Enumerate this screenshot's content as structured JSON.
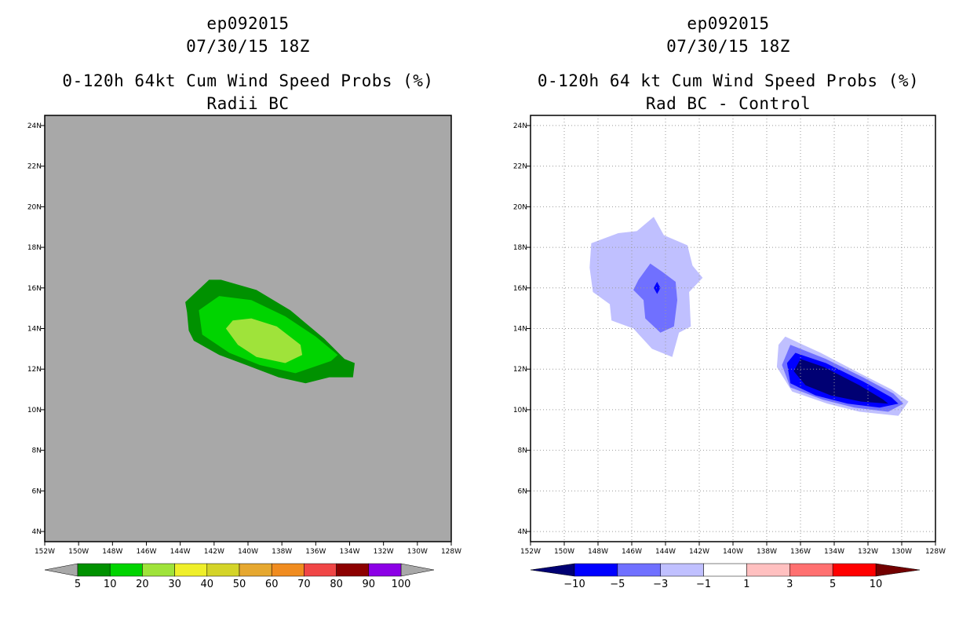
{
  "colors": {
    "land_gray": "#a8a8a8",
    "prob_scale": [
      "#009100",
      "#00d400",
      "#9fe33a",
      "#efef2a",
      "#d4d428",
      "#e6a830",
      "#f08c20",
      "#f04646",
      "#8c0000",
      "#8c00e6"
    ],
    "diff_scale": [
      "#000073",
      "#0000ff",
      "#7070ff",
      "#c0c0ff",
      "#ffffff",
      "#ffc0c0",
      "#ff7070",
      "#ff0000",
      "#730000"
    ]
  },
  "chart_data": [
    {
      "type": "contour-map",
      "storm_id": "ep092015",
      "datetime": "07/30/15 18Z",
      "title": "0-120h 64kt Cum Wind Speed Probs (%)",
      "subtitle": "Radii BC",
      "xlim": [
        -152,
        -128
      ],
      "ylim": [
        3.5,
        24.5
      ],
      "x_ticks": [
        "152W",
        "150W",
        "148W",
        "146W",
        "144W",
        "142W",
        "140W",
        "138W",
        "136W",
        "134W",
        "132W",
        "130W",
        "128W"
      ],
      "y_ticks": [
        "4N",
        "6N",
        "8N",
        "10N",
        "12N",
        "14N",
        "16N",
        "18N",
        "20N",
        "22N",
        "24N"
      ],
      "colorbar_labels": [
        "5",
        "10",
        "20",
        "30",
        "40",
        "50",
        "60",
        "70",
        "80",
        "90",
        "100"
      ],
      "contours": [
        {
          "level": 5,
          "color_index": 0,
          "points": [
            [
              -143.7,
              15.3
            ],
            [
              -142.3,
              16.4
            ],
            [
              -141.6,
              16.4
            ],
            [
              -139.5,
              15.9
            ],
            [
              -137.5,
              14.9
            ],
            [
              -135.5,
              13.5
            ],
            [
              -134.3,
              12.5
            ],
            [
              -133.7,
              12.3
            ],
            [
              -133.8,
              11.6
            ],
            [
              -135.2,
              11.6
            ],
            [
              -136.6,
              11.3
            ],
            [
              -138.2,
              11.6
            ],
            [
              -140.1,
              12.2
            ],
            [
              -141.7,
              12.7
            ],
            [
              -143.2,
              13.4
            ],
            [
              -143.5,
              13.9
            ],
            [
              -143.6,
              14.8
            ]
          ]
        },
        {
          "level": 10,
          "color_index": 1,
          "points": [
            [
              -142.9,
              14.9
            ],
            [
              -141.7,
              15.6
            ],
            [
              -139.8,
              15.4
            ],
            [
              -137.8,
              14.6
            ],
            [
              -136,
              13.6
            ],
            [
              -134.7,
              12.7
            ],
            [
              -135.1,
              12.4
            ],
            [
              -137.2,
              11.8
            ],
            [
              -139.3,
              12.2
            ],
            [
              -141.1,
              12.8
            ],
            [
              -142.7,
              13.7
            ]
          ]
        },
        {
          "level": 20,
          "color_index": 2,
          "points": [
            [
              -140.9,
              14.4
            ],
            [
              -139.8,
              14.5
            ],
            [
              -138.3,
              14.1
            ],
            [
              -136.9,
              13.2
            ],
            [
              -136.8,
              12.7
            ],
            [
              -137.8,
              12.3
            ],
            [
              -139.5,
              12.6
            ],
            [
              -140.6,
              13.2
            ],
            [
              -141.3,
              14
            ]
          ]
        }
      ]
    },
    {
      "type": "contour-map",
      "storm_id": "ep092015",
      "datetime": "07/30/15 18Z",
      "title": "0-120h 64 kt Cum Wind Speed Probs (%)",
      "subtitle": "Rad BC - Control",
      "xlim": [
        -152,
        -128
      ],
      "ylim": [
        3.5,
        24.5
      ],
      "x_ticks": [
        "152W",
        "150W",
        "148W",
        "146W",
        "144W",
        "142W",
        "140W",
        "138W",
        "136W",
        "134W",
        "132W",
        "130W",
        "128W"
      ],
      "y_ticks": [
        "4N",
        "6N",
        "8N",
        "10N",
        "12N",
        "14N",
        "16N",
        "18N",
        "20N",
        "22N",
        "24N"
      ],
      "colorbar_labels": [
        "-10",
        "-5",
        "-3",
        "-1",
        "1",
        "3",
        "5",
        "10"
      ],
      "contours": [
        {
          "level": -1,
          "color_index": 3,
          "points": [
            [
              -148.6,
              18
            ]
          ],
          "_": "placeholder"
        },
        {
          "level": -1,
          "color_index": 3,
          "points": [
            [
              -148.4,
              18.2
            ],
            [
              -146.8,
              18.7
            ],
            [
              -145.7,
              18.8
            ],
            [
              -144.7,
              19.5
            ],
            [
              -144.1,
              18.6
            ],
            [
              -142.7,
              18.1
            ],
            [
              -142.4,
              17.1
            ],
            [
              -141.8,
              16.5
            ],
            [
              -142.6,
              15.8
            ],
            [
              -142.5,
              14.1
            ],
            [
              -143.2,
              13.8
            ],
            [
              -143.6,
              12.6
            ],
            [
              -144.8,
              13
            ],
            [
              -145.9,
              14
            ],
            [
              -147.2,
              14.4
            ],
            [
              -147.3,
              15.2
            ],
            [
              -148.3,
              15.8
            ],
            [
              -148.5,
              17
            ]
          ]
        },
        {
          "level": -3,
          "color_index": 2,
          "points": [
            [
              -145.6,
              16.4
            ],
            [
              -144.9,
              17.2
            ],
            [
              -144.2,
              16.8
            ],
            [
              -143.4,
              16.3
            ],
            [
              -143.3,
              15.4
            ],
            [
              -143.5,
              14.1
            ],
            [
              -144.3,
              13.8
            ],
            [
              -145.2,
              14.5
            ],
            [
              -145.3,
              15.4
            ],
            [
              -145.9,
              15.9
            ]
          ]
        },
        {
          "level": -5,
          "color_index": 1,
          "points": [
            [
              -144.5,
              16.3
            ],
            [
              -144.3,
              16
            ],
            [
              -144.5,
              15.7
            ],
            [
              -144.7,
              16
            ]
          ]
        },
        {
          "level": -1,
          "color_index": 3,
          "points": [
            [
              -136.9,
              13.6
            ],
            [
              -134.8,
              12.8
            ],
            [
              -132.5,
              11.8
            ],
            [
              -130.6,
              11
            ],
            [
              -129.6,
              10.4
            ],
            [
              -130.2,
              9.7
            ],
            [
              -132.5,
              9.9
            ],
            [
              -134.4,
              10.3
            ],
            [
              -136.5,
              10.9
            ],
            [
              -137.4,
              12.1
            ],
            [
              -137.3,
              13.2
            ]
          ]
        },
        {
          "level": -3,
          "color_index": 2,
          "points": [
            [
              -136.6,
              13.2
            ],
            [
              -134.5,
              12.5
            ],
            [
              -132.3,
              11.6
            ],
            [
              -130.5,
              10.8
            ],
            [
              -129.9,
              10.3
            ],
            [
              -130.8,
              9.9
            ],
            [
              -132.8,
              10.1
            ],
            [
              -134.7,
              10.5
            ],
            [
              -136.6,
              11.1
            ],
            [
              -137.1,
              12.2
            ]
          ]
        },
        {
          "level": -5,
          "color_index": 1,
          "points": [
            [
              -136.3,
              12.8
            ],
            [
              -134.5,
              12.3
            ],
            [
              -132.3,
              11.4
            ],
            [
              -130.6,
              10.6
            ],
            [
              -130.2,
              10.3
            ],
            [
              -131.3,
              10.1
            ],
            [
              -133.2,
              10.3
            ],
            [
              -135.1,
              10.7
            ],
            [
              -136.6,
              11.3
            ],
            [
              -136.8,
              12.3
            ]
          ]
        },
        {
          "level": -10,
          "color_index": 0,
          "points": [
            [
              -136,
              12.5
            ],
            [
              -134.6,
              12.1
            ],
            [
              -132.5,
              11.2
            ],
            [
              -131.1,
              10.5
            ],
            [
              -130.8,
              10.3
            ],
            [
              -132.4,
              10.4
            ],
            [
              -134.2,
              10.7
            ],
            [
              -135.7,
              11.2
            ],
            [
              -136.4,
              11.9
            ]
          ]
        }
      ]
    }
  ]
}
